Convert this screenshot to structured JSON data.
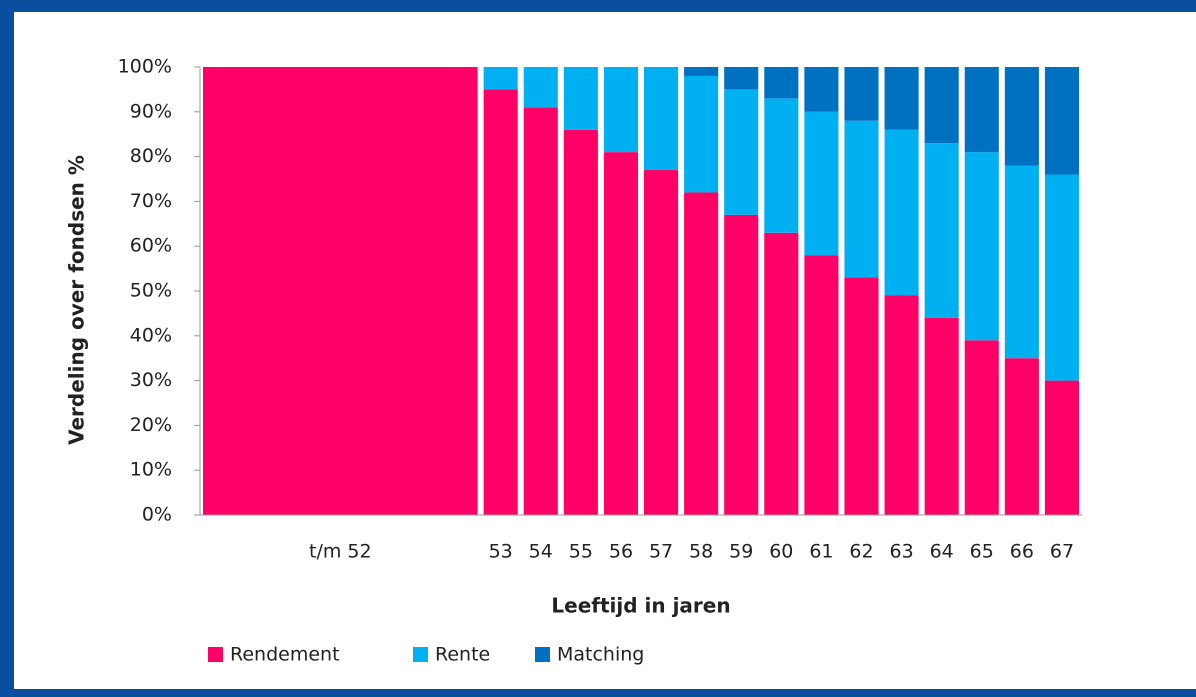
{
  "chart_data": {
    "type": "stacked_bar",
    "x_label": "Leeftijd in jaren",
    "y_label": "Verdeling over fondsen %",
    "categories": [
      "t/m 52",
      "53",
      "54",
      "55",
      "56",
      "57",
      "58",
      "59",
      "60",
      "61",
      "62",
      "63",
      "64",
      "65",
      "66",
      "67"
    ],
    "series": [
      {
        "name": "Rendement",
        "color": "#ff0066",
        "values": [
          100,
          95,
          91,
          86,
          81,
          77,
          72,
          67,
          63,
          58,
          53,
          49,
          44,
          39,
          35,
          30
        ]
      },
      {
        "name": "Rente",
        "color": "#00b0f0",
        "values": [
          0,
          5,
          9,
          14,
          19,
          23,
          26,
          28,
          30,
          32,
          35,
          37,
          39,
          42,
          43,
          46
        ]
      },
      {
        "name": "Matching",
        "color": "#0070c0",
        "values": [
          0,
          0,
          0,
          0,
          0,
          0,
          2,
          5,
          7,
          10,
          12,
          14,
          17,
          19,
          22,
          24
        ]
      }
    ],
    "ylim": [
      0,
      100
    ],
    "yticks": [
      {
        "value": 0,
        "label": "0%"
      },
      {
        "value": 10,
        "label": "10%"
      },
      {
        "value": 20,
        "label": "20%"
      },
      {
        "value": 30,
        "label": "30%"
      },
      {
        "value": 40,
        "label": "40%"
      },
      {
        "value": 50,
        "label": "50%"
      },
      {
        "value": 60,
        "label": "60%"
      },
      {
        "value": 70,
        "label": "70%"
      },
      {
        "value": 80,
        "label": "80%"
      },
      {
        "value": 90,
        "label": "90%"
      },
      {
        "value": 100,
        "label": "100%"
      }
    ],
    "legend": "bottom-left"
  }
}
